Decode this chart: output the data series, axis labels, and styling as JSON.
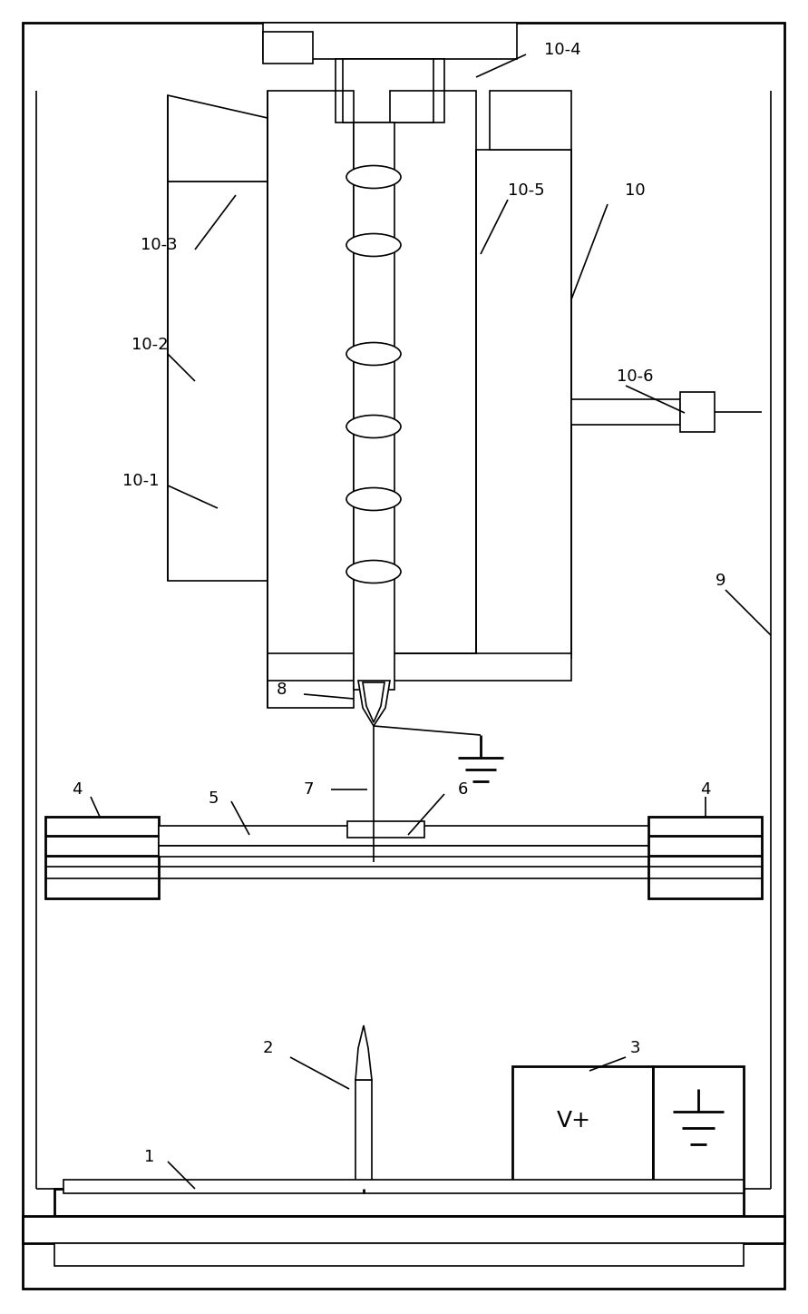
{
  "fig_width": 8.91,
  "fig_height": 14.48,
  "bg_color": "#ffffff",
  "line_color": "#000000"
}
